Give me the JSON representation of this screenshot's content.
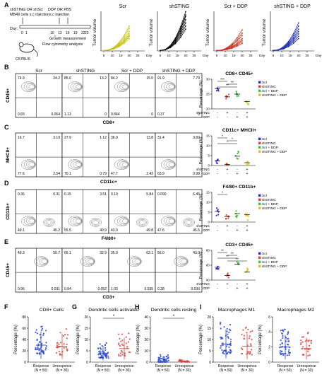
{
  "panel_letters": [
    "A",
    "B",
    "C",
    "D",
    "E",
    "F",
    "G",
    "H",
    "I"
  ],
  "schematic": {
    "left_top": "shSTING OR shScr",
    "left_mid": "MB49 cells s.c injection",
    "right_top": "DDP OR PBS",
    "right_mid": "s.c injection",
    "day_label": "Day:",
    "days": [
      "0",
      "1",
      "10",
      "13",
      "16",
      "19",
      "22",
      "23"
    ],
    "growth": "Growth measurement",
    "flow": "Flow cytometry analysis",
    "mouse": "C57BL/6"
  },
  "growth_titles": [
    "Scr",
    "shSTING",
    "Scr + DDP",
    "shSTING + DDP"
  ],
  "growth_ylabel": "Tumor volume",
  "growth_x_suffix": "Day",
  "growth_xticks": [
    "5",
    "10",
    "15",
    "20",
    "25"
  ],
  "flow_col_titles": [
    "Scr",
    "shSTING",
    "Scr + DDP",
    "shSTING + DDP"
  ],
  "flow_rows": [
    {
      "letter": "B",
      "ylabel": "CD45+",
      "xlabel": "CD8+",
      "vals": [
        [
          "74.9",
          "24.2",
          "0.83",
          "0.064"
        ],
        [
          "85.6",
          "13.2",
          "1.13",
          "0"
        ],
        [
          "84.2",
          "15.0",
          "0.844",
          "0"
        ],
        [
          "91.9",
          "7.79",
          "0.37",
          "0"
        ]
      ]
    },
    {
      "letter": "C",
      "ylabel": "MHCII+",
      "xlabel": "CD11c+",
      "vals": [
        [
          "16.7",
          "3.19",
          "77.6",
          "2.54"
        ],
        [
          "27.9",
          "1.12",
          "70.1",
          "0.79"
        ],
        [
          "36.9",
          "13.8",
          "47.7",
          "2.43"
        ],
        [
          "31.4",
          "3.82",
          "63.9",
          "0.98"
        ]
      ]
    },
    {
      "letter": "D",
      "ylabel": "CD11b+",
      "xlabel": "F4/80+",
      "vals": [
        [
          "0.36",
          "0.31",
          "49.1",
          "45.2"
        ],
        [
          "0.15",
          "3.51",
          "55.5",
          "40.9"
        ],
        [
          "0.19",
          "5.84",
          "43.0",
          "49.8"
        ],
        [
          "0.090",
          "6.45",
          "47.6",
          "45.5"
        ]
      ]
    },
    {
      "letter": "E",
      "ylabel": "CD45+",
      "xlabel": "CD3+",
      "vals": [
        [
          "49.3",
          "50.7",
          "0.96",
          "0.031"
        ],
        [
          "66.1",
          "32.9",
          "0.94",
          "0.052"
        ],
        [
          "35.9",
          "63.1",
          "1.03",
          "0.035"
        ],
        [
          "56.0",
          "43.0",
          "0.28",
          "0.030"
        ]
      ]
    }
  ],
  "dot_plots": [
    {
      "title": "CD8+ CD45+",
      "ylabel": "Percentage (%)",
      "yticks": [
        "20",
        "25",
        "30"
      ],
      "sig": [
        "***",
        "**",
        "**"
      ]
    },
    {
      "title": "CD11c+ MHCII+",
      "ylabel": "Percentage (%)",
      "yticks": [
        "0",
        "5",
        "10",
        "15"
      ],
      "sig": [
        "*",
        "*",
        "*"
      ]
    },
    {
      "title": "F4/80+ CD11b+",
      "ylabel": "Percentage (%)",
      "yticks": [
        "0",
        "5",
        "10",
        "15"
      ],
      "sig": [
        "*"
      ]
    },
    {
      "title": "CD3+ CD45+",
      "ylabel": "Percentage (%)",
      "yticks": [
        "40",
        "60",
        "80"
      ],
      "sig": [
        "**",
        "**",
        "**",
        "**"
      ]
    }
  ],
  "legend": [
    {
      "label": "Scr",
      "color": "#2b2bd9"
    },
    {
      "label": "shSTING",
      "color": "#e0453a"
    },
    {
      "label": "Scr + DDP",
      "color": "#44bb44"
    },
    {
      "label": "shSTING + DDP",
      "color": "#d8c42a"
    }
  ],
  "matrix": {
    "rows": [
      "shSTING",
      "DDP"
    ],
    "row1": [
      "-",
      "+",
      "-",
      "+"
    ],
    "row2": [
      "-",
      "-",
      "+",
      "+"
    ]
  },
  "bottom_panels": [
    {
      "letter": "F",
      "title": "CD8+ Cells",
      "yticks": [
        "0",
        "20",
        "40",
        "60",
        "80"
      ],
      "sig": ""
    },
    {
      "letter": "G",
      "title": "Dendritic cells activated",
      "yticks": [
        "0",
        "5",
        "10",
        "15",
        "20"
      ],
      "sig": "*"
    },
    {
      "letter": "H",
      "title": "Dendritic cells resting",
      "yticks": [
        "0",
        "10",
        "20",
        "30",
        "40"
      ],
      "sig": "*"
    },
    {
      "letter": "I",
      "title": "Macrophages M1",
      "yticks": [
        "0",
        "5",
        "10",
        "15",
        "20"
      ],
      "sig": ""
    },
    {
      "letter": "",
      "title": "Macrophages M2",
      "yticks": [
        "0",
        "2",
        "4",
        "6"
      ],
      "sig": ""
    }
  ],
  "bottom_ylabel": "Percentage (%)",
  "bottom_xcats": [
    "Response",
    "Unresponse"
  ],
  "bottom_ns": [
    "(N = 50)",
    "(N = 30)"
  ],
  "group_colors": {
    "response": "#2244cc",
    "unresponse": "#d8443c"
  }
}
